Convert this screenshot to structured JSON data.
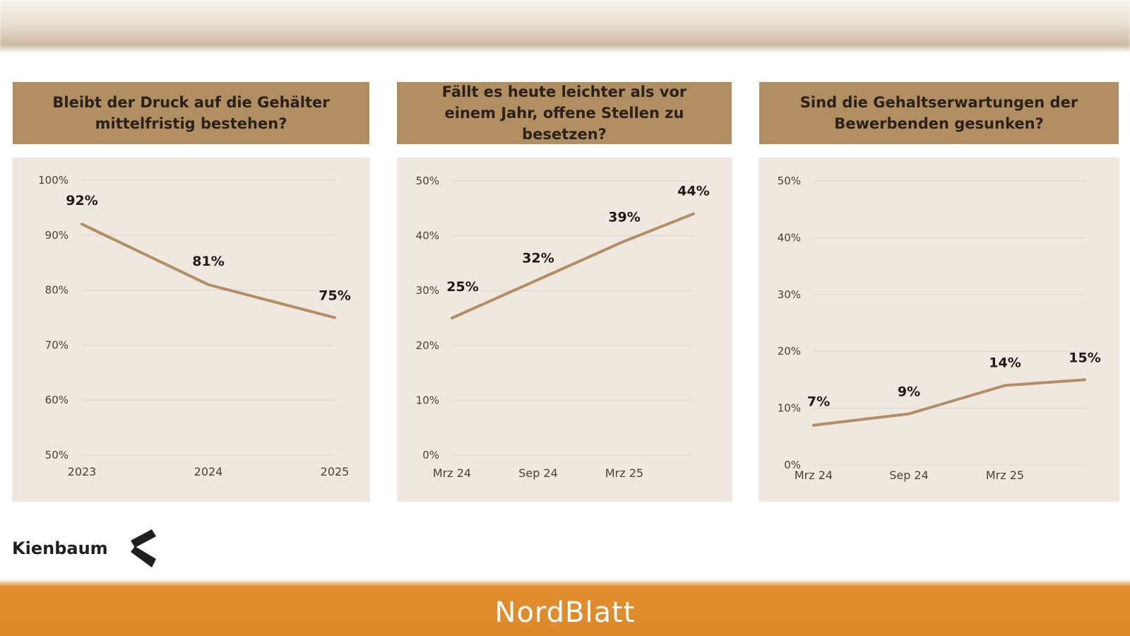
{
  "brand": {
    "logo_text": "Kienbaum"
  },
  "footer": {
    "publication": "NordBlatt"
  },
  "colors": {
    "header_bg": "#b18f63",
    "panel_bg": "#efe8e1",
    "line": "#b38e63",
    "footer_bg": "#dd8a2a"
  },
  "chart_data": [
    {
      "type": "line",
      "title": "Bleibt der Druck auf die Gehälter mittelfristig bestehen?",
      "categories": [
        "2023",
        "2024",
        "2025"
      ],
      "values": [
        92,
        81,
        75
      ],
      "value_labels": [
        "92%",
        "81%",
        "75%"
      ],
      "ylim": [
        50,
        100
      ],
      "yticks": [
        50,
        60,
        70,
        80,
        90,
        100
      ],
      "ytick_labels": [
        "50%",
        "60%",
        "70%",
        "80%",
        "90%",
        "100%"
      ],
      "x_labels": [
        "2023",
        "2024",
        "2025"
      ],
      "grid": true
    },
    {
      "type": "line",
      "title": "Fällt es heute leichter als vor einem Jahr, offene Stellen zu besetzen?",
      "categories": [
        "Mrz 24",
        "Sep 24",
        "Mrz 25",
        ""
      ],
      "values": [
        25,
        32,
        39,
        44
      ],
      "value_labels": [
        "25%",
        "32%",
        "39%",
        "44%"
      ],
      "ylim": [
        0,
        50
      ],
      "yticks": [
        0,
        10,
        20,
        30,
        40,
        50
      ],
      "ytick_labels": [
        "0%",
        "10%",
        "20%",
        "30%",
        "40%",
        "50%"
      ],
      "x_labels": [
        "Mrz 24",
        "Sep 24",
        "Mrz 25"
      ],
      "grid": true
    },
    {
      "type": "line",
      "title": "Sind die Gehaltserwartungen der Bewerbenden gesunken?",
      "categories": [
        "Mrz 24",
        "Sep 24",
        "Mrz 25",
        ""
      ],
      "values": [
        7,
        9,
        14,
        15
      ],
      "value_labels": [
        "7%",
        "9%",
        "14%",
        "15%"
      ],
      "ylim": [
        0,
        50
      ],
      "yticks": [
        0,
        10,
        20,
        30,
        40,
        50
      ],
      "ytick_labels": [
        "0%",
        "10%",
        "20%",
        "30%",
        "40%",
        "50%"
      ],
      "x_labels": [
        "Mrz 24",
        "Sep 24",
        "Mrz 25"
      ],
      "grid": true
    }
  ]
}
